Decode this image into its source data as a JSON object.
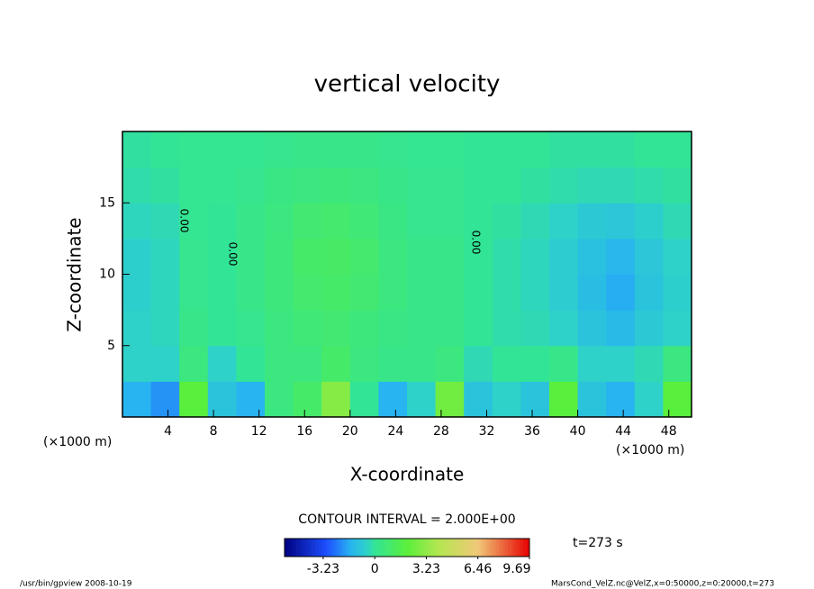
{
  "chart_data": {
    "type": "contour",
    "title": "vertical velocity",
    "x_label": "X-coordinate",
    "y_label": "Z-coordinate",
    "x_unit": "(×1000 m)",
    "contour_interval": "CONTOUR INTERVAL = 2.000E+00",
    "time_label": "t=273 s",
    "footer_left": "/usr/bin/gpview  2008-10-19",
    "footer_right": "MarsCond_VelZ.nc@VelZ,x=0:50000,z=0:20000,t=273",
    "contour_labels": [
      "0.00",
      "0.00",
      "0.00"
    ],
    "xlim": [
      0,
      50
    ],
    "xticks": [
      4,
      8,
      12,
      16,
      20,
      24,
      28,
      32,
      36,
      40,
      44,
      48
    ],
    "ylim": [
      0,
      20
    ],
    "yticks": [
      5,
      10,
      15
    ],
    "x": [
      1.25,
      3.75,
      6.25,
      8.75,
      11.25,
      13.75,
      16.25,
      18.75,
      21.25,
      23.75,
      26.25,
      28.75,
      31.25,
      33.75,
      36.25,
      38.75,
      41.25,
      43.75,
      46.25,
      48.75
    ],
    "z": [
      1.25,
      3.75,
      6.25,
      8.75,
      11.25,
      13.75,
      16.25,
      18.75
    ],
    "values": [
      [
        -1.5,
        -2,
        2,
        -1,
        -1.5,
        0.5,
        1,
        3,
        0,
        -1.5,
        -0.5,
        2.5,
        -1,
        -0.5,
        -1,
        2,
        -1,
        -1.5,
        -0.5,
        2
      ],
      [
        -0.5,
        -0.5,
        0.5,
        -0.5,
        0,
        0.5,
        0.5,
        1,
        0.5,
        0.3,
        0.3,
        0.5,
        -0.3,
        0,
        0,
        0.3,
        -0.5,
        -0.5,
        -0.3,
        0.5
      ],
      [
        -0.5,
        -0.4,
        0.3,
        0,
        0.2,
        0.5,
        0.7,
        0.8,
        0.6,
        0.4,
        0.3,
        0.3,
        0,
        -0.2,
        -0.3,
        -0.5,
        -1,
        -1.3,
        -0.8,
        -0.5
      ],
      [
        -0.6,
        -0.4,
        0.2,
        0,
        0.3,
        0.6,
        0.9,
        1,
        0.8,
        0.5,
        0.3,
        0.3,
        0,
        -0.2,
        -0.4,
        -0.7,
        -1.2,
        -1.6,
        -1,
        -0.6
      ],
      [
        -0.6,
        -0.4,
        0.2,
        0,
        0.3,
        0.6,
        1,
        1.1,
        0.9,
        0.5,
        0.3,
        0.3,
        0,
        -0.2,
        -0.4,
        -0.7,
        -1.1,
        -1.4,
        -0.9,
        -0.5
      ],
      [
        -0.4,
        -0.3,
        0.1,
        0,
        0.3,
        0.5,
        0.8,
        0.9,
        0.7,
        0.4,
        0.2,
        0.2,
        0,
        -0.1,
        -0.3,
        -0.5,
        -0.8,
        -0.9,
        -0.6,
        -0.3
      ],
      [
        -0.2,
        -0.1,
        0.1,
        0.1,
        0.2,
        0.4,
        0.5,
        0.6,
        0.5,
        0.3,
        0.2,
        0.2,
        0,
        0,
        -0.1,
        -0.2,
        -0.3,
        -0.3,
        -0.2,
        -0.1
      ],
      [
        -0.1,
        0,
        0.1,
        0.1,
        0.1,
        0.2,
        0.3,
        0.3,
        0.3,
        0.2,
        0.1,
        0.1,
        0,
        0,
        0,
        -0.1,
        -0.1,
        -0.1,
        0,
        0
      ]
    ],
    "clim": [
      -5.65,
      9.69
    ],
    "cticks": [
      -3.23,
      0,
      3.23,
      6.46,
      9.69
    ],
    "colormap": [
      [
        -5.65,
        "#000080"
      ],
      [
        -3,
        "#1e50ff"
      ],
      [
        -1.5,
        "#28b4f0"
      ],
      [
        -0.5,
        "#2ed2c8"
      ],
      [
        0,
        "#32e496"
      ],
      [
        2,
        "#5aef3c"
      ],
      [
        4,
        "#b4e650"
      ],
      [
        6.46,
        "#f0c878"
      ],
      [
        9.69,
        "#e60000"
      ]
    ]
  }
}
